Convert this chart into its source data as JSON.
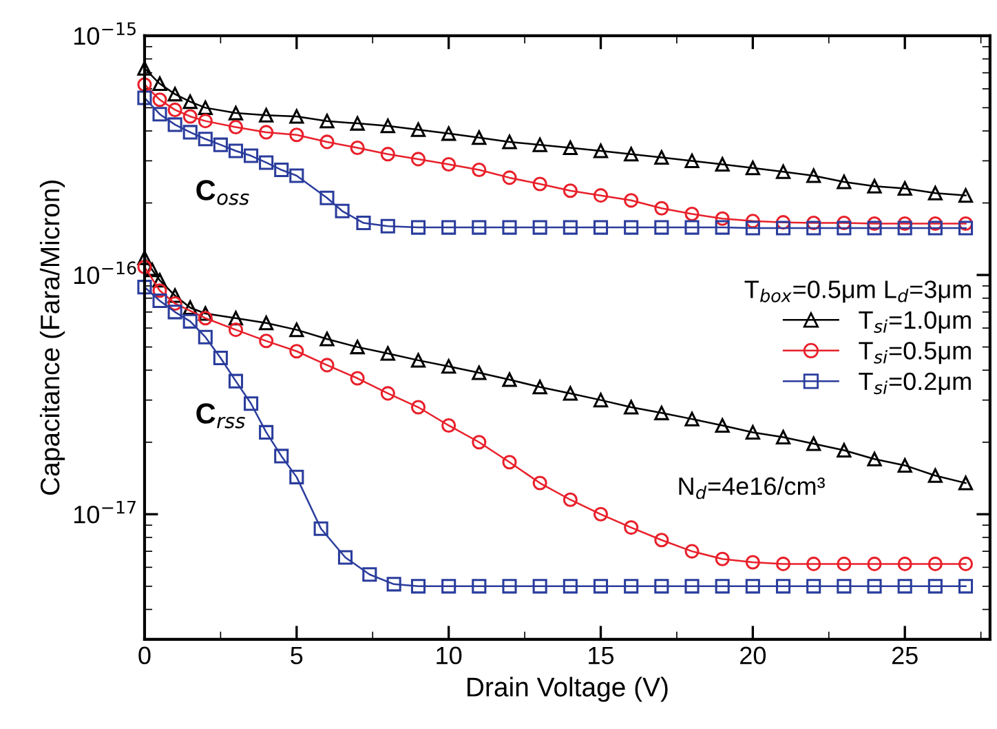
{
  "chart_data": {
    "type": "line",
    "xlabel": "Drain Voltage (V)",
    "ylabel": "Capacitance (Fara/Micron)",
    "legend_title": "T$_{box}$=0.5μm L$_{d}$=3μm",
    "legend": "right",
    "log": "y",
    "grid": false,
    "xlim": [
      0,
      27.8
    ],
    "xticks": [
      0,
      5,
      10,
      15,
      20,
      25
    ],
    "ylim": [
      3e-18,
      1e-15
    ],
    "yticks": [
      {
        "value": 1e-17,
        "label": "10$^{−17}$"
      },
      {
        "value": 1e-16,
        "label": "10$^{−16}$"
      },
      {
        "value": 1e-15,
        "label": "10$^{−15}$"
      }
    ],
    "annotations": [
      "C$_{oss}$",
      "C$_{rss}$",
      "N$_{d}$=4e16/cm³"
    ],
    "series": [
      {
        "name": "T$_{si}$=1.0μm",
        "color": "#000000",
        "marker": "triangle",
        "x": [
          0,
          0.5,
          1,
          1.5,
          2,
          3,
          4,
          5,
          6,
          7,
          8,
          9,
          10,
          11,
          12,
          13,
          14,
          15,
          16,
          17,
          18,
          19,
          20,
          21,
          22,
          23,
          24,
          25,
          26,
          27
        ],
        "values": [
          7.3e-16,
          6.3e-16,
          5.7e-16,
          5.3e-16,
          5e-16,
          4.75e-16,
          4.65e-16,
          4.6e-16,
          4.4e-16,
          4.3e-16,
          4.2e-16,
          4.05e-16,
          3.9e-16,
          3.75e-16,
          3.6e-16,
          3.5e-16,
          3.4e-16,
          3.3e-16,
          3.2e-16,
          3.1e-16,
          3e-16,
          2.9e-16,
          2.8e-16,
          2.7e-16,
          2.6e-16,
          2.45e-16,
          2.35e-16,
          2.3e-16,
          2.2e-16,
          2.15e-16
        ]
      },
      {
        "name": "T$_{si}$=0.5μm",
        "color": "#e8202a",
        "marker": "circle",
        "x": [
          0,
          0.5,
          1,
          1.5,
          2,
          3,
          4,
          5,
          6,
          7,
          8,
          9,
          10,
          11,
          12,
          13,
          14,
          15,
          16,
          17,
          18,
          19,
          20,
          21,
          22,
          23,
          24,
          25,
          26,
          27
        ],
        "values": [
          6.25e-16,
          5.4e-16,
          4.9e-16,
          4.6e-16,
          4.4e-16,
          4.15e-16,
          3.95e-16,
          3.85e-16,
          3.6e-16,
          3.4e-16,
          3.2e-16,
          3.05e-16,
          2.9e-16,
          2.75e-16,
          2.55e-16,
          2.4e-16,
          2.25e-16,
          2.15e-16,
          2.05e-16,
          1.9e-16,
          1.8e-16,
          1.72e-16,
          1.68e-16,
          1.66e-16,
          1.65e-16,
          1.65e-16,
          1.64e-16,
          1.64e-16,
          1.64e-16,
          1.64e-16
        ]
      },
      {
        "name": "T$_{si}$=0.2μm",
        "color": "#2a3c9c",
        "marker": "square",
        "x": [
          0,
          0.5,
          1,
          1.5,
          2,
          2.5,
          3,
          3.5,
          4,
          4.5,
          5,
          6,
          6.5,
          7.2,
          8,
          9,
          10,
          11,
          12,
          13,
          14,
          15,
          16,
          17,
          18,
          19,
          20,
          21,
          22,
          23,
          24,
          25,
          26,
          27
        ],
        "values": [
          5.5e-16,
          4.7e-16,
          4.25e-16,
          3.95e-16,
          3.7e-16,
          3.5e-16,
          3.3e-16,
          3.15e-16,
          2.95e-16,
          2.75e-16,
          2.6e-16,
          2.1e-16,
          1.85e-16,
          1.65e-16,
          1.6e-16,
          1.58e-16,
          1.58e-16,
          1.58e-16,
          1.58e-16,
          1.58e-16,
          1.58e-16,
          1.58e-16,
          1.58e-16,
          1.58e-16,
          1.58e-16,
          1.58e-16,
          1.57e-16,
          1.57e-16,
          1.57e-16,
          1.57e-16,
          1.57e-16,
          1.57e-16,
          1.57e-16,
          1.57e-16
        ]
      },
      {
        "color": "#000000",
        "marker": "triangle",
        "x": [
          0,
          0.25,
          0.5,
          1,
          1.5,
          2,
          3,
          4,
          5,
          6,
          7,
          8,
          9,
          10,
          11,
          12,
          13,
          14,
          15,
          16,
          17,
          18,
          19,
          20,
          21,
          22,
          23,
          24,
          25,
          26,
          27
        ],
        "values": [
          1.18e-16,
          1.05e-16,
          9.5e-17,
          8.2e-17,
          7.3e-17,
          6.9e-17,
          6.6e-17,
          6.3e-17,
          5.9e-17,
          5.4e-17,
          5e-17,
          4.7e-17,
          4.4e-17,
          4.15e-17,
          3.9e-17,
          3.65e-17,
          3.4e-17,
          3.2e-17,
          3e-17,
          2.8e-17,
          2.65e-17,
          2.5e-17,
          2.35e-17,
          2.2e-17,
          2.1e-17,
          1.97e-17,
          1.85e-17,
          1.7e-17,
          1.6e-17,
          1.45e-17,
          1.35e-17
        ]
      },
      {
        "color": "#e8202a",
        "marker": "circle",
        "x": [
          0,
          0.5,
          1,
          2,
          3,
          4,
          5,
          6,
          7,
          8,
          9,
          10,
          11,
          12,
          13,
          14,
          15,
          16,
          17,
          18,
          19,
          20,
          21,
          22,
          23,
          24,
          25,
          26,
          27
        ],
        "values": [
          1.08e-16,
          8.6e-17,
          7.6e-17,
          6.6e-17,
          5.9e-17,
          5.3e-17,
          4.8e-17,
          4.2e-17,
          3.7e-17,
          3.2e-17,
          2.8e-17,
          2.35e-17,
          2e-17,
          1.65e-17,
          1.35e-17,
          1.15e-17,
          1e-17,
          8.8e-18,
          7.8e-18,
          7e-18,
          6.5e-18,
          6.3e-18,
          6.2e-18,
          6.2e-18,
          6.2e-18,
          6.2e-18,
          6.2e-18,
          6.2e-18,
          6.2e-18
        ]
      },
      {
        "color": "#2a3c9c",
        "marker": "square",
        "x": [
          0,
          0.5,
          1,
          1.5,
          2,
          2.5,
          3,
          3.5,
          4,
          4.5,
          5,
          5.8,
          6.6,
          7.4,
          8.2,
          9,
          10,
          11,
          12,
          13,
          14,
          15,
          16,
          17,
          18,
          19,
          20,
          21,
          22,
          23,
          24,
          25,
          26,
          27
        ],
        "values": [
          8.9e-17,
          7.8e-17,
          7e-17,
          6.4e-17,
          5.5e-17,
          4.5e-17,
          3.6e-17,
          2.9e-17,
          2.2e-17,
          1.75e-17,
          1.43e-17,
          8.7e-18,
          6.6e-18,
          5.6e-18,
          5.1e-18,
          5e-18,
          5e-18,
          5e-18,
          5e-18,
          5e-18,
          5e-18,
          5e-18,
          5e-18,
          5e-18,
          5e-18,
          5e-18,
          5e-18,
          5e-18,
          5e-18,
          5e-18,
          5e-18,
          5e-18,
          5e-18,
          5e-18
        ]
      }
    ]
  }
}
